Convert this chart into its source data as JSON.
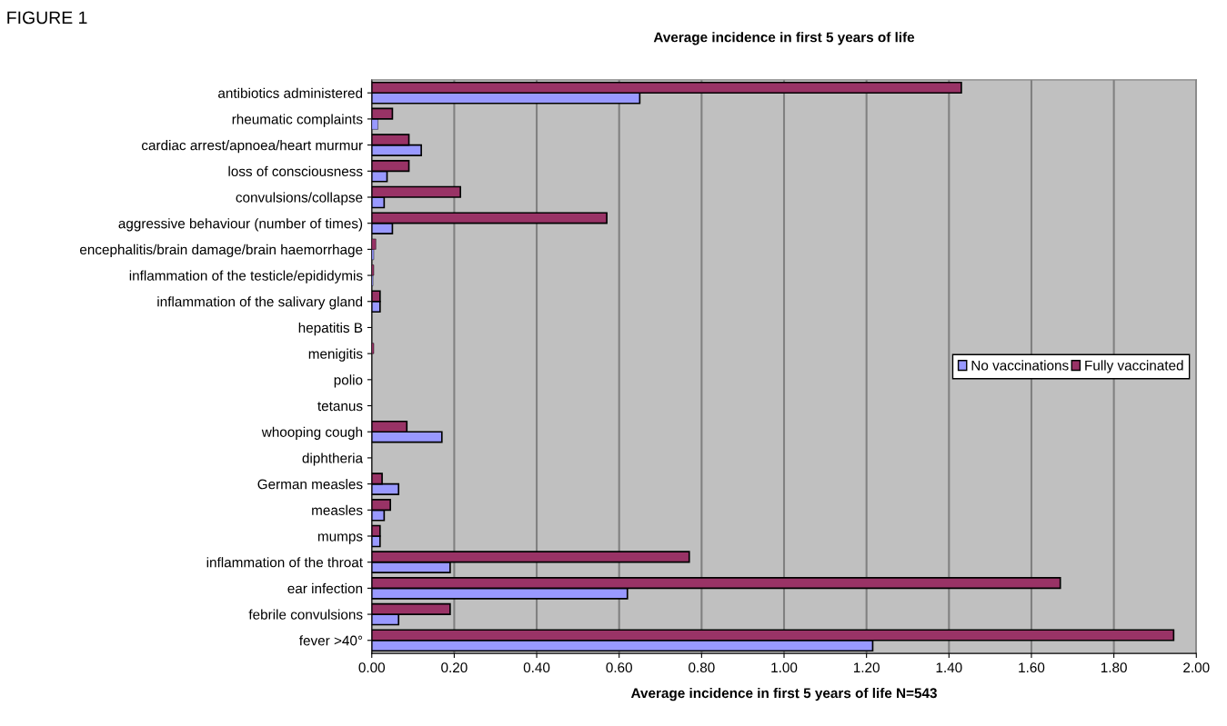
{
  "chart_data": {
    "type": "bar",
    "orientation": "horizontal",
    "title": "Average incidence in first 5 years of life",
    "xlabel": "Average incidence in first 5 years of life N=543",
    "annotations": [
      "FIGURE 1"
    ],
    "categories": [
      "antibiotics administered",
      "rheumatic complaints",
      "cardiac arrest/apnoea/heart murmur",
      "loss of consciousness",
      "convulsions/collapse",
      "aggressive behaviour (number of times)",
      "encephalitis/brain damage/brain haemorrhage",
      "inflammation of the testicle/epididymis",
      "inflammation of the salivary gland",
      "hepatitis B",
      "menigitis",
      "polio",
      "tetanus",
      "whooping cough",
      "diphtheria",
      "German measles",
      "measles",
      "mumps",
      "inflammation of the throat",
      "ear infection",
      "febrile convulsions",
      "fever >40°"
    ],
    "series": [
      {
        "name": "No vaccinations",
        "color": "#9999ff",
        "values": [
          0.65,
          0.015,
          0.12,
          0.037,
          0.03,
          0.05,
          0.005,
          0.003,
          0.02,
          0,
          0,
          0,
          0,
          0.17,
          0,
          0.065,
          0.03,
          0.02,
          0.19,
          0.62,
          0.065,
          1.215
        ]
      },
      {
        "name": "Fully vaccinated",
        "color": "#993366",
        "values": [
          1.43,
          0.05,
          0.09,
          0.09,
          0.215,
          0.57,
          0.01,
          0.005,
          0.02,
          0,
          0.005,
          0,
          0,
          0.085,
          0,
          0.025,
          0.045,
          0.02,
          0.77,
          1.67,
          0.19,
          1.945
        ]
      }
    ],
    "xlim": [
      0,
      2
    ],
    "xticks": [
      {
        "value": 0,
        "label": "0.00"
      },
      {
        "value": 0.2,
        "label": "0.20"
      },
      {
        "value": 0.4,
        "label": "0.40"
      },
      {
        "value": 0.6,
        "label": "0.60"
      },
      {
        "value": 0.8,
        "label": "0.80"
      },
      {
        "value": 1,
        "label": "1.00"
      },
      {
        "value": 1.2,
        "label": "1.20"
      },
      {
        "value": 1.4,
        "label": "1.40"
      },
      {
        "value": 1.6,
        "label": "1.60"
      },
      {
        "value": 1.8,
        "label": "1.80"
      },
      {
        "value": 2,
        "label": "2.00"
      }
    ],
    "grid": "x",
    "legend": "right"
  }
}
